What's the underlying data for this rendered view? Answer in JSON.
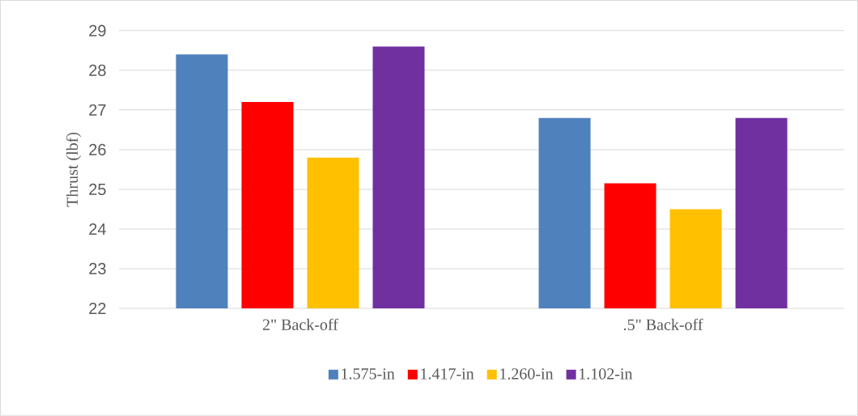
{
  "chart_data": {
    "type": "bar",
    "ylabel": "Thrust (lbf)",
    "categories": [
      "2\" Back-off",
      ".5\" Back-off"
    ],
    "series": [
      {
        "name": "1.575-in",
        "color": "#4f81bd",
        "values": [
          28.4,
          26.8
        ]
      },
      {
        "name": "1.417-in",
        "color": "#ff0000",
        "values": [
          27.2,
          25.15
        ]
      },
      {
        "name": "1.260-in",
        "color": "#ffc000",
        "values": [
          25.8,
          24.5
        ]
      },
      {
        "name": "1.102-in",
        "color": "#7030a0",
        "values": [
          28.6,
          26.8
        ]
      }
    ],
    "ylim": [
      22,
      29
    ],
    "yticks": [
      22,
      23,
      24,
      25,
      26,
      27,
      28,
      29
    ],
    "grid": "y",
    "legend": "bottom"
  }
}
